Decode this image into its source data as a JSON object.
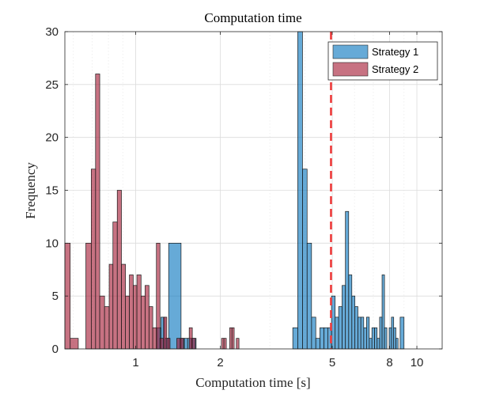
{
  "chart_data": {
    "type": "bar",
    "subtype": "histogram",
    "title": "Computation time",
    "xlabel": "Computation time [s]",
    "ylabel": "Frequency",
    "xscale": "log",
    "xlim": [
      0.56,
      12.3
    ],
    "ylim": [
      0,
      30
    ],
    "xticks": [
      1,
      2,
      5,
      8,
      10
    ],
    "xtick_labels": [
      "1",
      "2",
      "5",
      "8",
      "10"
    ],
    "yticks": [
      0,
      5,
      10,
      15,
      20,
      25,
      30
    ],
    "ytick_labels": [
      "0",
      "5",
      "10",
      "15",
      "20",
      "25",
      "30"
    ],
    "grid": true,
    "legend_position": "top-right",
    "reference_line": {
      "x": 4.95,
      "style": "dashed",
      "color": "#ee3a3a"
    },
    "series": [
      {
        "name": "Strategy 1",
        "color": "#0072bd",
        "bins": [
          [
            1.19,
            1.23,
            2
          ],
          [
            1.23,
            1.27,
            3
          ],
          [
            1.27,
            1.31,
            1
          ],
          [
            1.31,
            1.45,
            10
          ],
          [
            1.45,
            1.49,
            1
          ],
          [
            1.49,
            1.53,
            1
          ],
          [
            1.53,
            1.58,
            1
          ],
          [
            1.58,
            1.64,
            1
          ],
          [
            3.62,
            3.77,
            2
          ],
          [
            3.77,
            3.92,
            30
          ],
          [
            3.92,
            4.07,
            17
          ],
          [
            4.07,
            4.22,
            10
          ],
          [
            4.22,
            4.37,
            3
          ],
          [
            4.37,
            4.52,
            1
          ],
          [
            4.52,
            4.67,
            2
          ],
          [
            4.67,
            4.82,
            2
          ],
          [
            4.82,
            4.97,
            2
          ],
          [
            4.97,
            5.12,
            5
          ],
          [
            5.12,
            5.27,
            3
          ],
          [
            5.27,
            5.42,
            4
          ],
          [
            5.42,
            5.57,
            6
          ],
          [
            5.57,
            5.72,
            13
          ],
          [
            5.72,
            5.87,
            7
          ],
          [
            5.87,
            6.02,
            5
          ],
          [
            6.02,
            6.17,
            4
          ],
          [
            6.17,
            6.32,
            3
          ],
          [
            6.32,
            6.47,
            3
          ],
          [
            6.47,
            6.62,
            2
          ],
          [
            6.62,
            6.77,
            3
          ],
          [
            6.77,
            6.92,
            1
          ],
          [
            6.92,
            7.07,
            2
          ],
          [
            7.07,
            7.22,
            2
          ],
          [
            7.22,
            7.37,
            1
          ],
          [
            7.37,
            7.52,
            3
          ],
          [
            7.52,
            7.67,
            7
          ],
          [
            7.67,
            7.82,
            2
          ],
          [
            7.82,
            7.97,
            0
          ],
          [
            7.97,
            8.12,
            2
          ],
          [
            8.12,
            8.27,
            3
          ],
          [
            8.27,
            8.42,
            2
          ],
          [
            8.42,
            8.57,
            1
          ],
          [
            8.57,
            8.72,
            0
          ],
          [
            8.72,
            9.0,
            3
          ]
        ]
      },
      {
        "name": "Strategy 2",
        "color": "#a2142f",
        "bins": [
          [
            0.56,
            0.585,
            10
          ],
          [
            0.585,
            0.625,
            1
          ],
          [
            0.665,
            0.695,
            10
          ],
          [
            0.695,
            0.72,
            17
          ],
          [
            0.72,
            0.745,
            26
          ],
          [
            0.745,
            0.775,
            5
          ],
          [
            0.775,
            0.805,
            4
          ],
          [
            0.805,
            0.83,
            8
          ],
          [
            0.83,
            0.86,
            12
          ],
          [
            0.86,
            0.89,
            15
          ],
          [
            0.89,
            0.92,
            8
          ],
          [
            0.92,
            0.95,
            5
          ],
          [
            0.95,
            0.98,
            7
          ],
          [
            0.98,
            1.01,
            6
          ],
          [
            1.01,
            1.045,
            7
          ],
          [
            1.045,
            1.08,
            5
          ],
          [
            1.08,
            1.115,
            6
          ],
          [
            1.115,
            1.15,
            4
          ],
          [
            1.15,
            1.185,
            2
          ],
          [
            1.185,
            1.22,
            10
          ],
          [
            1.22,
            1.255,
            1
          ],
          [
            1.255,
            1.29,
            3
          ],
          [
            1.29,
            1.325,
            1
          ],
          [
            1.4,
            1.44,
            1
          ],
          [
            1.44,
            1.48,
            1
          ],
          [
            1.55,
            1.59,
            2
          ],
          [
            1.59,
            1.63,
            1
          ],
          [
            2.02,
            2.06,
            1
          ],
          [
            2.06,
            2.1,
            1
          ],
          [
            2.16,
            2.2,
            2
          ],
          [
            2.2,
            2.24,
            2
          ],
          [
            2.28,
            2.33,
            1
          ]
        ]
      }
    ]
  }
}
